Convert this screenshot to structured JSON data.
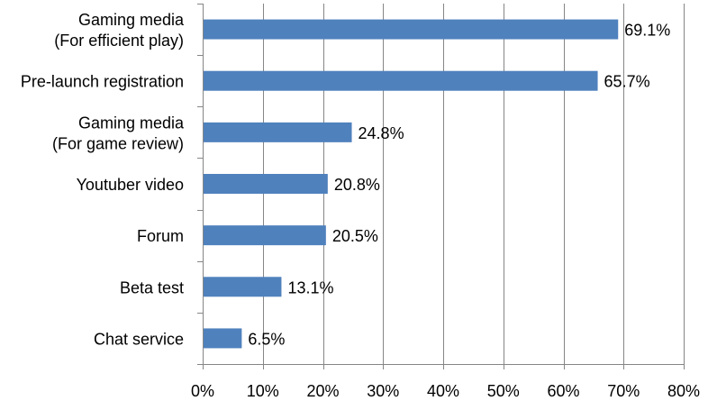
{
  "chart_data": {
    "type": "bar",
    "orientation": "horizontal",
    "categories": [
      [
        "Gaming media",
        "(For efficient play)"
      ],
      [
        "Pre-launch registration"
      ],
      [
        "Gaming media",
        "(For game review)"
      ],
      [
        "Youtuber video"
      ],
      [
        "Forum"
      ],
      [
        "Beta test"
      ],
      [
        "Chat service"
      ]
    ],
    "values": [
      69.1,
      65.7,
      24.8,
      20.8,
      20.5,
      13.1,
      6.5
    ],
    "value_labels": [
      "69.1%",
      "65.7%",
      "24.8%",
      "20.8%",
      "20.5%",
      "13.1%",
      "6.5%"
    ],
    "x_ticks": [
      "0%",
      "10%",
      "20%",
      "30%",
      "40%",
      "50%",
      "60%",
      "70%",
      "80%"
    ],
    "xlim": [
      0,
      80
    ],
    "grid": true,
    "legend": "none",
    "bar_color": "#4F81BD"
  }
}
